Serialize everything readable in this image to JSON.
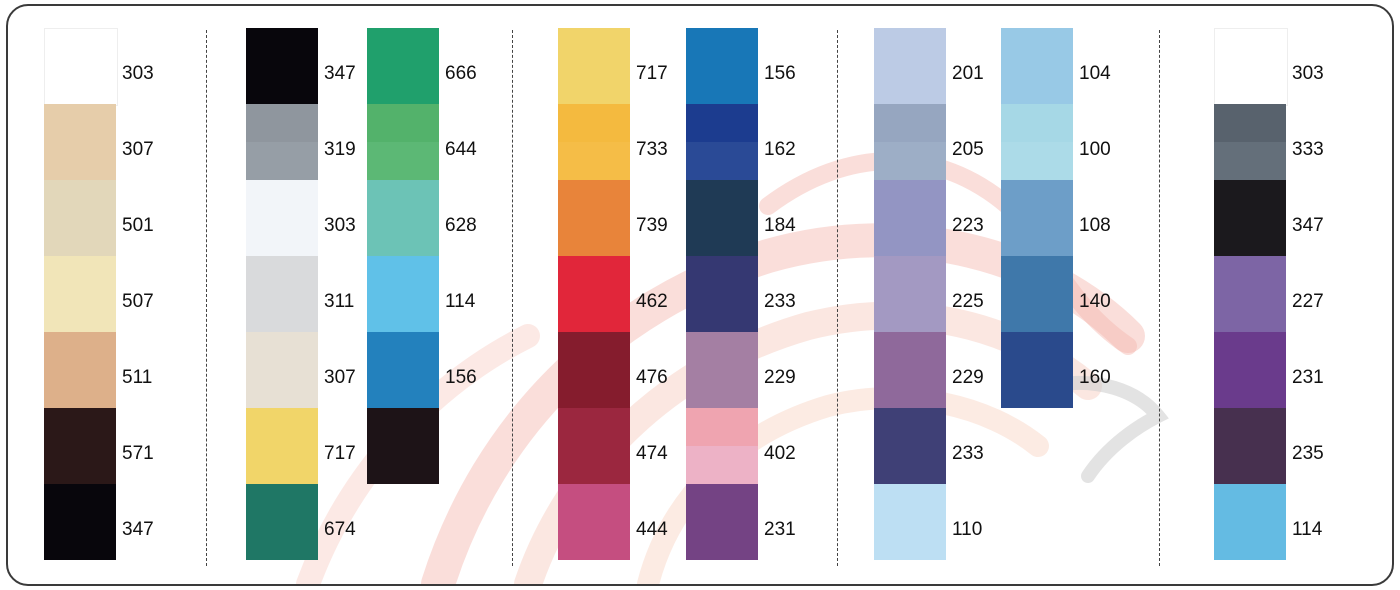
{
  "colors": {
    "frame": "#3a3a3a",
    "divider": "#444444",
    "watermark": "#f5b0a8"
  },
  "groups": [
    {
      "columns": [
        {
          "swatches": [
            {
              "code": "303",
              "color": "#ffffff"
            },
            {
              "code": "307",
              "color": "#e6cdaa"
            },
            {
              "code": "501",
              "color": "#e2d7ba"
            },
            {
              "code": "507",
              "color": "#f1e5b8"
            },
            {
              "code": "511",
              "color": "#ddb08a"
            },
            {
              "code": "571",
              "color": "#2b1818"
            },
            {
              "code": "347",
              "color": "#08060c"
            }
          ]
        }
      ]
    },
    {
      "columns": [
        {
          "swatches": [
            {
              "code": "347",
              "color": "#08060c"
            },
            {
              "code": "319",
              "color": "#8f969e",
              "color_b": "#969ea6"
            },
            {
              "code": "303",
              "color": "#f2f5f9"
            },
            {
              "code": "311",
              "color": "#d9dadc"
            },
            {
              "code": "307",
              "color": "#e7e0d4"
            },
            {
              "code": "717",
              "color": "#f1d569"
            },
            {
              "code": "674",
              "color": "#1f7765"
            }
          ]
        },
        {
          "swatches": [
            {
              "code": "666",
              "color": "#20a06c"
            },
            {
              "code": "644",
              "color": "#53b26b",
              "color_b": "#5cb875"
            },
            {
              "code": "628",
              "color": "#6cc3b6"
            },
            {
              "code": "114",
              "color": "#60c1e8"
            },
            {
              "code": "156",
              "color": "#2381bd"
            },
            {
              "code": "",
              "color": "#1d1317"
            }
          ]
        }
      ]
    },
    {
      "columns": [
        {
          "swatches": [
            {
              "code": "717",
              "color": "#f1d46a"
            },
            {
              "code": "733",
              "color": "#f4ba3f",
              "color_b": "#f5bd47"
            },
            {
              "code": "739",
              "color": "#e8843a"
            },
            {
              "code": "462",
              "color": "#e1263a"
            },
            {
              "code": "476",
              "color": "#851c2d"
            },
            {
              "code": "474",
              "color": "#9b273f"
            },
            {
              "code": "444",
              "color": "#c54e80"
            }
          ]
        },
        {
          "swatches": [
            {
              "code": "156",
              "color": "#1877b7"
            },
            {
              "code": "162",
              "color": "#1c3c8f",
              "color_b": "#2a4a96"
            },
            {
              "code": "184",
              "color": "#1f3a55"
            },
            {
              "code": "233",
              "color": "#353872"
            },
            {
              "code": "229",
              "color": "#a47fa3"
            },
            {
              "code": "402",
              "color": "#efa4b0",
              "color_b": "#edb2c6"
            },
            {
              "code": "231",
              "color": "#744384"
            }
          ]
        }
      ]
    },
    {
      "columns": [
        {
          "swatches": [
            {
              "code": "201",
              "color": "#bccbe5"
            },
            {
              "code": "205",
              "color": "#96a6c0",
              "color_b": "#9daec6"
            },
            {
              "code": "223",
              "color": "#9395c3"
            },
            {
              "code": "225",
              "color": "#a399c2"
            },
            {
              "code": "229",
              "color": "#8f699b"
            },
            {
              "code": "233",
              "color": "#3f4076"
            },
            {
              "code": "110",
              "color": "#bddff3"
            }
          ]
        },
        {
          "swatches": [
            {
              "code": "104",
              "color": "#98c9e6"
            },
            {
              "code": "100",
              "color": "#a6d8e6",
              "color_b": "#acdbe8"
            },
            {
              "code": "108",
              "color": "#6d9ec8"
            },
            {
              "code": "140",
              "color": "#3f78aa"
            },
            {
              "code": "160",
              "color": "#2a4a8c"
            }
          ]
        }
      ]
    },
    {
      "columns": [
        {
          "swatches": [
            {
              "code": "303",
              "color": "#ffffff"
            },
            {
              "code": "333",
              "color": "#58626d",
              "color_b": "#646f7a"
            },
            {
              "code": "347",
              "color": "#1b191d"
            },
            {
              "code": "227",
              "color": "#7d65a5"
            },
            {
              "code": "231",
              "color": "#6a3b8c"
            },
            {
              "code": "235",
              "color": "#47304f"
            },
            {
              "code": "114",
              "color": "#64bbe3"
            }
          ]
        }
      ]
    }
  ]
}
